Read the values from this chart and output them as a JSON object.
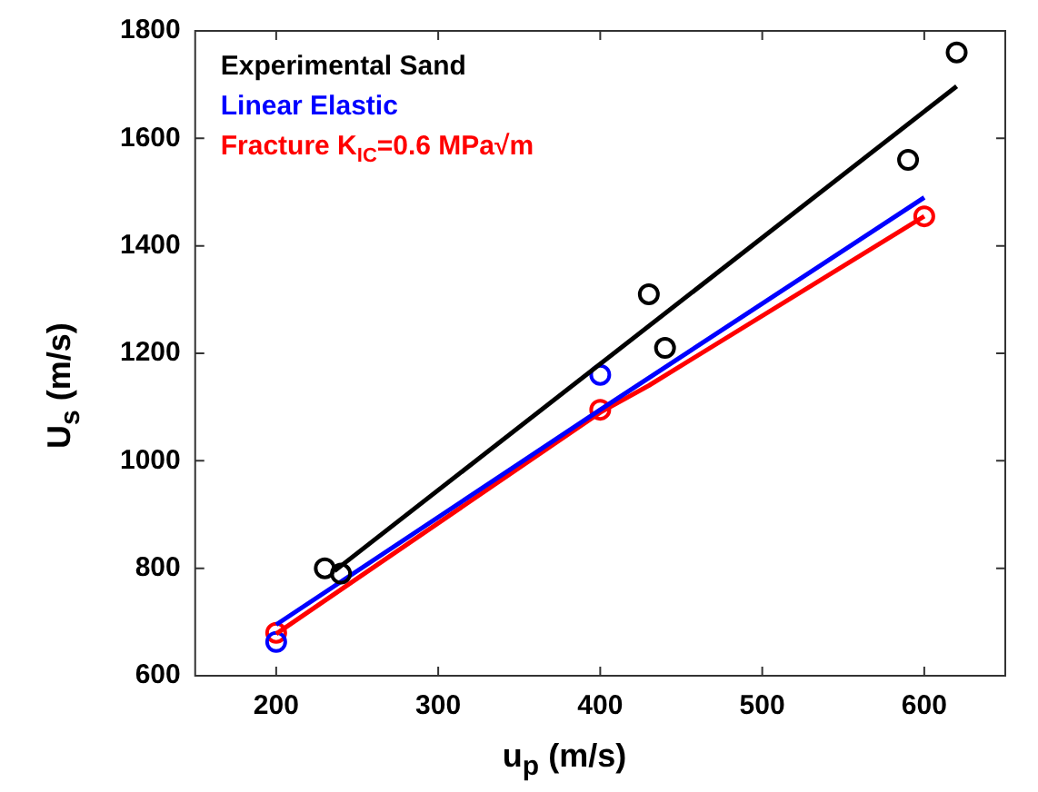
{
  "chart_data": {
    "type": "scatter",
    "xlabel": "u$_{p}$ (m/s)",
    "ylabel": "U$_{s}$ (m/s)",
    "xlim": [
      150,
      650
    ],
    "xticks": [
      200,
      300,
      400,
      500,
      600
    ],
    "ylim": [
      600,
      1800
    ],
    "yticks": [
      600,
      800,
      1000,
      1200,
      1400,
      1600,
      1800
    ],
    "grid": false,
    "legend": "top left",
    "marker": "circle",
    "series": [
      {
        "name": "Experimental Sand",
        "color": "#000000",
        "x": [
          230,
          240,
          430,
          440,
          590,
          620
        ],
        "values": [
          800,
          790,
          1310,
          1210,
          1560,
          1760
        ]
      },
      {
        "name": "Linear Elastic",
        "color": "#0000ff",
        "type": "line",
        "marker": "none",
        "x": [
          200,
          400,
          600
        ],
        "values": [
          695,
          1095,
          1490
        ]
      },
      {
        "name": "Fracture K$_{IC}$=0.6 MPa√m",
        "color": "#ff0000",
        "type": "line",
        "marker": "none",
        "x": [
          200,
          400,
          430,
          600
        ],
        "values": [
          678,
          1090,
          1140,
          1455
        ]
      },
      {
        "color": "#000000",
        "type": "line",
        "marker": "none",
        "x": [
          236,
          620
        ],
        "values": [
          795,
          1697
        ]
      },
      {
        "color": "#0000ff",
        "x": [
          200,
          400
        ],
        "values": [
          663,
          1160
        ]
      },
      {
        "color": "#ff0000",
        "x": [
          200,
          400,
          600
        ],
        "values": [
          680,
          1095,
          1455
        ]
      }
    ]
  }
}
